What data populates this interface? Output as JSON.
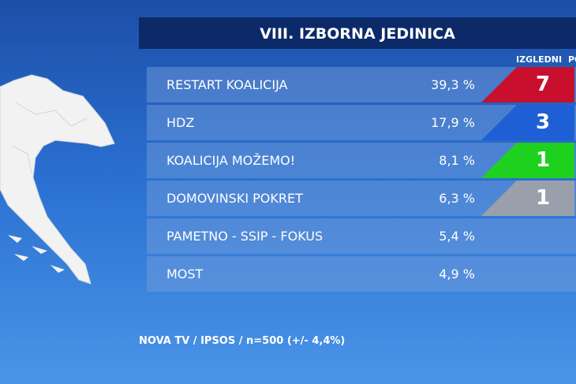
{
  "header": {
    "title": "VIII. IZBORNA JEDINICA",
    "columns": [
      "IZGLEDNI",
      "PO"
    ]
  },
  "table": {
    "rows": [
      {
        "party": "RESTART KOALICIJA",
        "share": "39,3 %",
        "seats": "7",
        "color": "#c8102e"
      },
      {
        "party": "HDZ",
        "share": "17,9 %",
        "seats": "3",
        "color": "#1f5fd6"
      },
      {
        "party": "KOALICIJA MOŽEMO!",
        "share": "8,1 %",
        "seats": "1",
        "color": "#1ed11e"
      },
      {
        "party": "DOMOVINSKI POKRET",
        "share": "6,3 %",
        "seats": "1",
        "color": "#9aa0ab"
      },
      {
        "party": "PAMETNO - SSIP - FOKUS",
        "share": "5,4 %"
      },
      {
        "party": "MOST",
        "share": "4,9 %"
      }
    ]
  },
  "footer": {
    "source": "NOVA TV / IPSOS / n=500 (+/- 4,4%)"
  }
}
